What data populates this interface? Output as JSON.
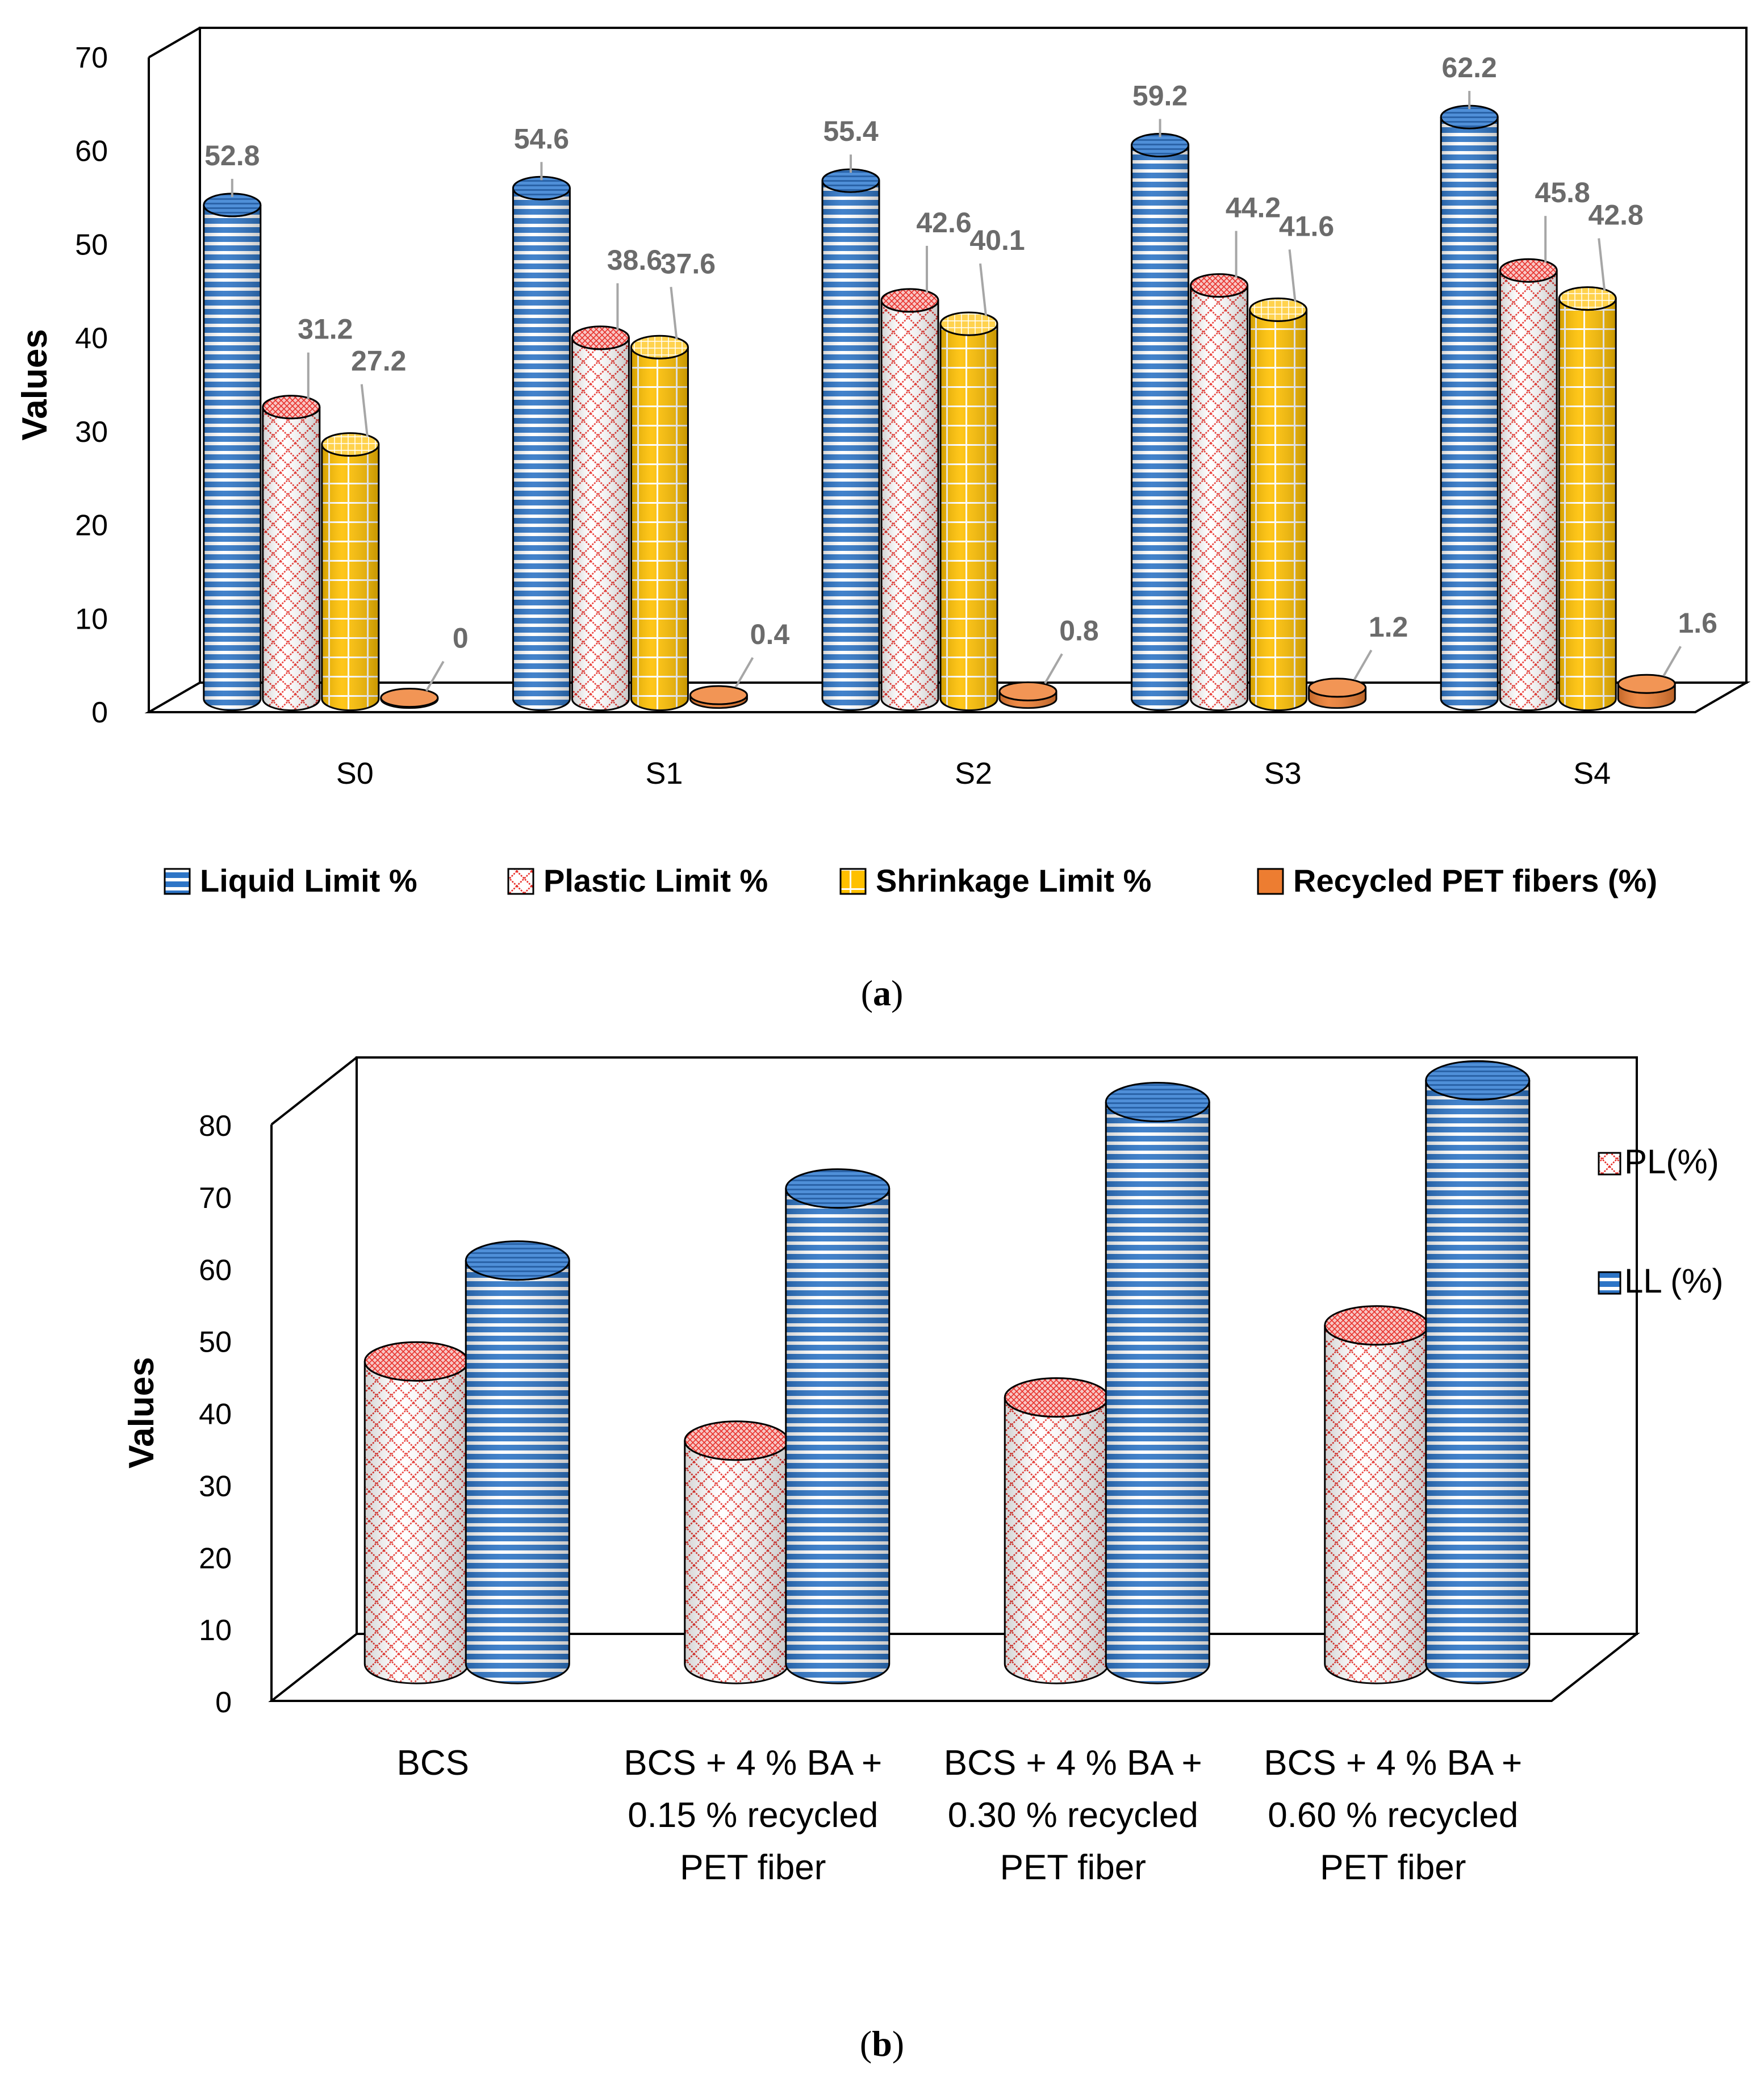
{
  "chart_data": [
    {
      "type": "bar",
      "style": "3d-cylinder",
      "caption": "a",
      "ylabel": "Values",
      "ylim": [
        0,
        70
      ],
      "yticks": [
        "0",
        "10",
        "20",
        "30",
        "40",
        "50",
        "60",
        "70"
      ],
      "categories": [
        "S0",
        "S1",
        "S2",
        "S3",
        "S4"
      ],
      "series": [
        {
          "name": "Liquid Limit %",
          "pattern": "hstripe",
          "color": "#2e75c6",
          "values": [
            52.8,
            54.6,
            55.4,
            59.2,
            62.2
          ],
          "labels": [
            "52.8",
            "54.6",
            "55.4",
            "59.2",
            "62.2"
          ]
        },
        {
          "name": "Plastic Limit %",
          "pattern": "crosshatch",
          "color": "#e8302a",
          "values": [
            31.2,
            38.6,
            42.6,
            44.2,
            45.8
          ],
          "labels": [
            "31.2",
            "38.6",
            "42.6",
            "44.2",
            "45.8"
          ]
        },
        {
          "name": "Shrinkage Limit %",
          "pattern": "grid",
          "color": "#ffc000",
          "values": [
            27.2,
            37.6,
            40.1,
            41.6,
            42.8
          ],
          "labels": [
            "27.2",
            "37.6",
            "40.1",
            "41.6",
            "42.8"
          ]
        },
        {
          "name": "Recycled PET fibers (%)",
          "pattern": "solid",
          "color": "#ed7d31",
          "values": [
            0,
            0.4,
            0.8,
            1.2,
            1.6
          ],
          "labels": [
            "0",
            "0.4",
            "0.8",
            "1.2",
            "1.6"
          ]
        }
      ],
      "legend": "bottom"
    },
    {
      "type": "bar",
      "style": "3d-cylinder",
      "caption": "b",
      "ylabel": "Values",
      "ylim": [
        0,
        80
      ],
      "yticks": [
        "0",
        "10",
        "20",
        "30",
        "40",
        "50",
        "60",
        "70",
        "80"
      ],
      "categories": [
        [
          "BCS"
        ],
        [
          "BCS + 4 % BA +",
          "0.15 %  recycled",
          "PET fiber"
        ],
        [
          "BCS + 4 % BA +",
          "0.30 %  recycled",
          "PET fiber"
        ],
        [
          "BCS + 4 % BA +",
          "0.60 % recycled",
          "PET fiber"
        ]
      ],
      "series": [
        {
          "name": "PL(%)",
          "pattern": "crosshatch",
          "color": "#e8302a",
          "values": [
            42,
            31,
            37,
            47
          ]
        },
        {
          "name": "LL (%)",
          "pattern": "hstripe",
          "color": "#2e75c6",
          "values": [
            56,
            66,
            78,
            81
          ]
        }
      ],
      "legend": "right"
    }
  ]
}
